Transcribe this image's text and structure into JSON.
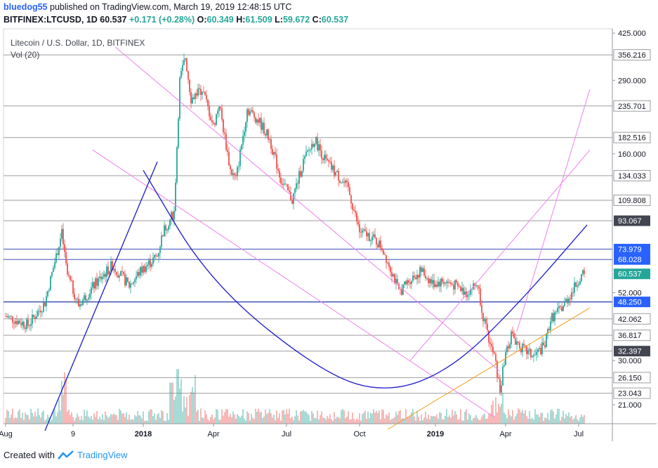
{
  "header": {
    "user": "bluedog55",
    "published_text": "published on TradingView.com, March 19, 2019 12:48:15 UTC",
    "symbol": "BITFINEX:LTCUSD, 1D",
    "last": "60.537",
    "change": "+0.171 (+0.28%)",
    "o_label": "O:",
    "o_value": "60.349",
    "h_label": "H:",
    "h_value": "61.509",
    "l_label": "L:",
    "l_value": "59.672",
    "c_label": "C:",
    "c_value": "60.537"
  },
  "legend": {
    "title": "Litecoin / U.S. Dollar, 1D, BITFINEX",
    "volume": "Vol (20)"
  },
  "footer": {
    "created_with": "Created with",
    "brand": "TradingView"
  },
  "colors": {
    "up": "#26a69a",
    "down": "#ef5350",
    "magenta": "#ee82ee",
    "blue": "#1a1acc",
    "orange": "#f39c12",
    "hline": "#9e9e9e",
    "blue_label": "#2962ff",
    "dark_label": "#434651",
    "green_label": "#26a69a"
  },
  "chart_data": {
    "type": "candlestick",
    "title": "Litecoin / U.S. Dollar, 1D, BITFINEX",
    "yscale": "log",
    "ylim": [
      18,
      440
    ],
    "x_ticks": [
      "Aug",
      "9",
      "2018",
      "Apr",
      "Jul",
      "Oct",
      "2019",
      "Apr",
      "Jul"
    ],
    "x_ticks_bold": [
      "2018",
      "2019"
    ],
    "y_ticks": [
      "425.000",
      "290.000",
      "160.000",
      "52.000",
      "30.000",
      "21.000"
    ],
    "price_path": [
      [
        0,
        43
      ],
      [
        4,
        40
      ],
      [
        7,
        48
      ],
      [
        9,
        70
      ],
      [
        10,
        84
      ],
      [
        11,
        60
      ],
      [
        13,
        47
      ],
      [
        16,
        56
      ],
      [
        19,
        65
      ],
      [
        22,
        55
      ],
      [
        24,
        62
      ],
      [
        27,
        70
      ],
      [
        28,
        85
      ],
      [
        30,
        100
      ],
      [
        31,
        290
      ],
      [
        32,
        350
      ],
      [
        33,
        250
      ],
      [
        35,
        270
      ],
      [
        37,
        200
      ],
      [
        38,
        240
      ],
      [
        40,
        140
      ],
      [
        41,
        130
      ],
      [
        43,
        230
      ],
      [
        45,
        210
      ],
      [
        47,
        180
      ],
      [
        49,
        130
      ],
      [
        51,
        110
      ],
      [
        53,
        150
      ],
      [
        55,
        180
      ],
      [
        57,
        150
      ],
      [
        59,
        135
      ],
      [
        61,
        120
      ],
      [
        63,
        85
      ],
      [
        65,
        82
      ],
      [
        67,
        75
      ],
      [
        69,
        60
      ],
      [
        70,
        52
      ],
      [
        72,
        58
      ],
      [
        74,
        62
      ],
      [
        76,
        56
      ],
      [
        78,
        57
      ],
      [
        80,
        55
      ],
      [
        82,
        52
      ],
      [
        84,
        56
      ],
      [
        85,
        43
      ],
      [
        86,
        35
      ],
      [
        87,
        31
      ],
      [
        88,
        23.5
      ],
      [
        89,
        32
      ],
      [
        90,
        37
      ],
      [
        92,
        33
      ],
      [
        94,
        31
      ],
      [
        96,
        34
      ],
      [
        97,
        42
      ],
      [
        99,
        46
      ],
      [
        101,
        53
      ],
      [
        102,
        58
      ],
      [
        103,
        60.5
      ]
    ],
    "hlines": [
      {
        "value": 356.216,
        "label": "356.216",
        "style": "gray"
      },
      {
        "value": 235.701,
        "label": "235.701",
        "style": "gray"
      },
      {
        "value": 182.516,
        "label": "182.516",
        "style": "gray"
      },
      {
        "value": 134.033,
        "label": "134.033",
        "style": "gray"
      },
      {
        "value": 109.808,
        "label": "109.808",
        "style": "gray"
      },
      {
        "value": 93.067,
        "label": "93.067",
        "style": "dark"
      },
      {
        "value": 73.979,
        "label": "73.979",
        "style": "blue"
      },
      {
        "value": 68.028,
        "label": "68.028",
        "style": "blue"
      },
      {
        "value": 60.537,
        "label": "60.537",
        "style": "green"
      },
      {
        "value": 48.25,
        "label": "48.250",
        "style": "blue"
      },
      {
        "value": 42.062,
        "label": "42.062",
        "style": "gray"
      },
      {
        "value": 36.817,
        "label": "36.817",
        "style": "gray"
      },
      {
        "value": 32.397,
        "label": "32.397",
        "style": "dark"
      },
      {
        "value": 26.15,
        "label": "26.150",
        "style": "gray"
      },
      {
        "value": 23.043,
        "label": "23.043",
        "style": "gray"
      }
    ],
    "trendlines": [
      {
        "name": "descending-channel-top",
        "color": "magenta",
        "from": [
          19.5,
          380
        ],
        "to": [
          88,
          27.5
        ]
      },
      {
        "name": "descending-channel-bottom",
        "color": "magenta",
        "from": [
          15.5,
          165
        ],
        "to": [
          87,
          19
        ]
      },
      {
        "name": "ascending-channel-top",
        "color": "magenta",
        "from": [
          91,
          38
        ],
        "to": [
          104,
          270
        ]
      },
      {
        "name": "ascending-channel-bottom",
        "color": "magenta",
        "from": [
          72,
          30
        ],
        "to": [
          104,
          165
        ]
      },
      {
        "name": "blue-support-line",
        "color": "blue",
        "from": [
          7,
          17
        ],
        "to": [
          27,
          150
        ]
      },
      {
        "name": "orange-support-line",
        "color": "orange",
        "from": [
          68,
          17.2
        ],
        "to": [
          104,
          46
        ]
      }
    ],
    "arc": {
      "name": "rounding-bottom-arc",
      "color": "blue",
      "points": [
        [
          24.5,
          140
        ],
        [
          36.5,
          56
        ],
        [
          56.5,
          27
        ],
        [
          68,
          23
        ],
        [
          79.5,
          28
        ],
        [
          91.5,
          48
        ],
        [
          103.5,
          90
        ]
      ]
    }
  }
}
